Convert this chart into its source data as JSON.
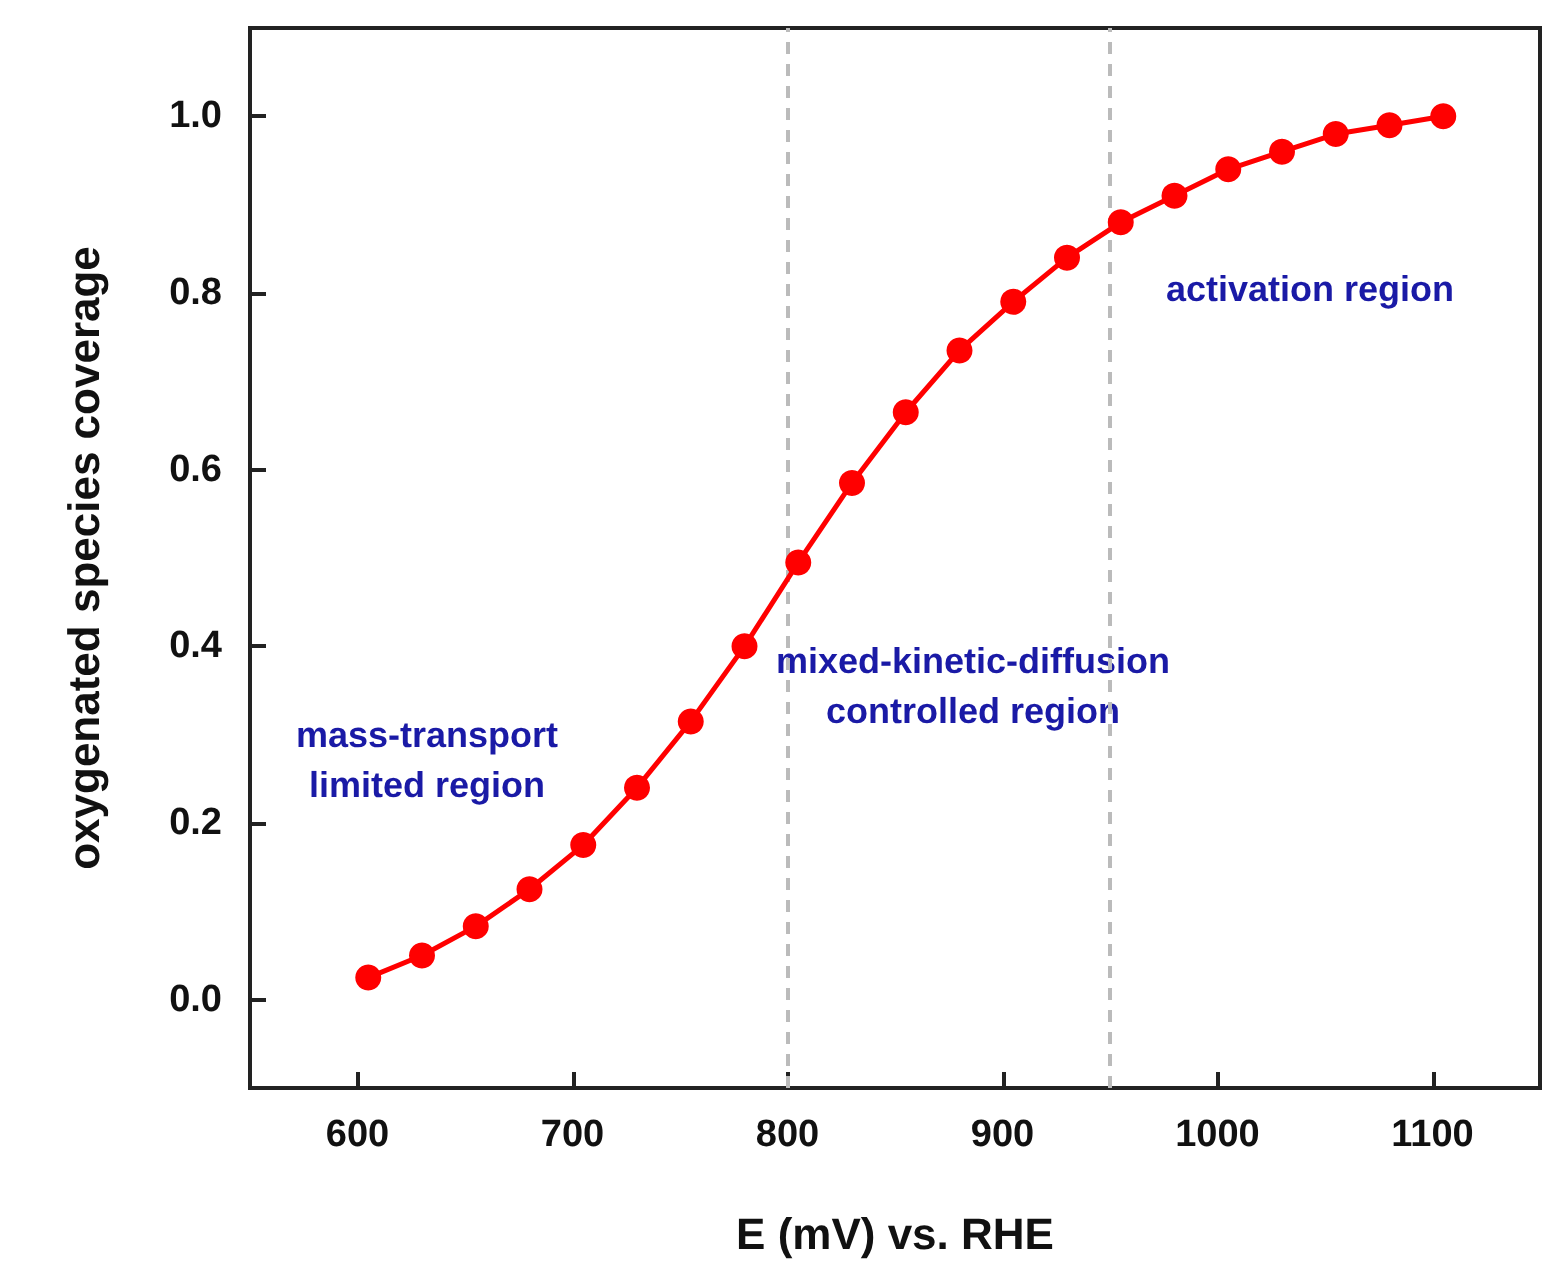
{
  "chart_data": {
    "type": "line",
    "xlabel": "E (mV) vs. RHE",
    "ylabel": "oxygenated species coverage",
    "x": [
      605,
      630,
      655,
      680,
      705,
      730,
      755,
      780,
      805,
      830,
      855,
      880,
      905,
      930,
      955,
      980,
      1005,
      1030,
      1055,
      1080,
      1105
    ],
    "series": [
      {
        "color": "#ff0000",
        "values": [
          0.025,
          0.05,
          0.083,
          0.125,
          0.175,
          0.24,
          0.315,
          0.4,
          0.495,
          0.585,
          0.665,
          0.735,
          0.79,
          0.84,
          0.88,
          0.91,
          0.94,
          0.96,
          0.98,
          0.99,
          1.0
        ]
      }
    ],
    "xlim": [
      550,
      1150
    ],
    "xticks": [
      600,
      700,
      800,
      900,
      1000,
      1100
    ],
    "ylim": [
      -0.1,
      1.1
    ],
    "yticks": [
      {
        "value": 0,
        "label": "0.0"
      },
      {
        "value": 0.2,
        "label": "0.2"
      },
      {
        "value": 0.4,
        "label": "0.4"
      },
      {
        "value": 0.6,
        "label": "0.6"
      },
      {
        "value": 0.8,
        "label": "0.8"
      },
      {
        "value": 1.0,
        "label": "1.0"
      }
    ],
    "ref_lines": [
      {
        "axis": "x",
        "value": 800,
        "color": "#bbbbbb",
        "line_style": "dashed"
      },
      {
        "axis": "x",
        "value": 950,
        "color": "#bbbbbb",
        "line_style": "dashed"
      }
    ],
    "annotations": [
      "mass-transport\nlimited region",
      "mixed-kinetic-diffusion\ncontrolled region",
      "activation region"
    ],
    "marker": "circle",
    "line_style": "solid"
  }
}
